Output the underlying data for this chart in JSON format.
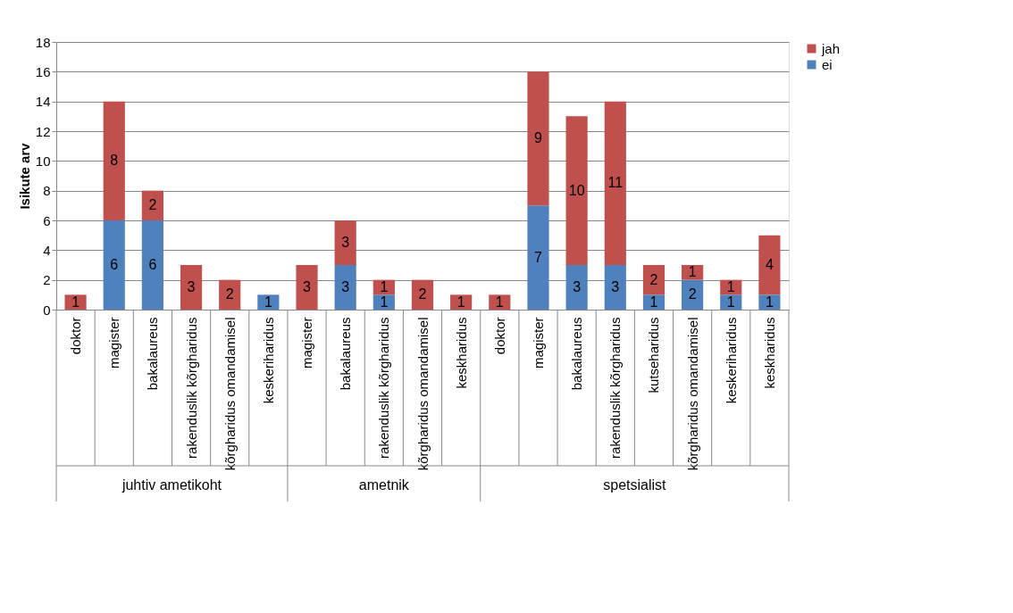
{
  "chart_data": {
    "type": "bar",
    "stacked": true,
    "ylabel": "Isikute arv",
    "categories": [
      "doktor",
      "magister",
      "bakalaureus",
      "rakenduslik kõrgharidus",
      "kõrgharidus omandamisel",
      "keskeriharidus",
      "magister",
      "bakalaureus",
      "rakenduslik kõrgharidus",
      "kõrgharidus omandamisel",
      "keskharidus",
      "doktor",
      "magister",
      "bakalaureus",
      "rakenduslik kõrgharidus",
      "kutseharidus",
      "kõrgharidus omandamisel",
      "keskeriharidus",
      "keskharidus"
    ],
    "annotations": [
      "juhtiv ametikoht",
      "ametnik",
      "spetsialist"
    ],
    "series": [
      {
        "name": "ei",
        "color": "#4f81bd",
        "values": [
          0,
          6,
          6,
          0,
          0,
          1,
          0,
          3,
          1,
          0,
          0,
          0,
          7,
          3,
          3,
          1,
          2,
          1,
          1
        ],
        "value_labels": [
          null,
          "6",
          "6",
          null,
          null,
          "1",
          null,
          "3",
          "1",
          null,
          null,
          null,
          "7",
          "3",
          "3",
          "1",
          "2",
          "1",
          "1"
        ]
      },
      {
        "name": "jah",
        "color": "#c0504d",
        "values": [
          1,
          8,
          2,
          3,
          2,
          0,
          3,
          3,
          1,
          2,
          1,
          1,
          9,
          10,
          11,
          2,
          1,
          1,
          4
        ],
        "value_labels": [
          "1",
          "8",
          "2",
          "3",
          "2",
          null,
          "3",
          "3",
          "1",
          "2",
          "1",
          "1",
          "9",
          "10",
          "11",
          "2",
          "1",
          "1",
          "4"
        ]
      }
    ],
    "ylim": [
      0,
      18
    ],
    "yticks": [
      0,
      2,
      4,
      6,
      8,
      10,
      12,
      14,
      16,
      18
    ],
    "grid": "y",
    "legend": "right"
  }
}
